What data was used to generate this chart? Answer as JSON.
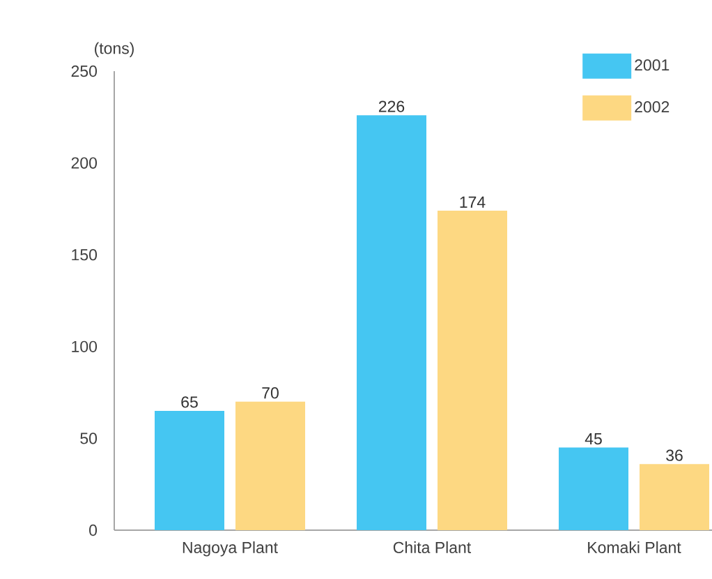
{
  "chart_data": {
    "type": "bar",
    "ylabel": "(tons)",
    "categories": [
      "Nagoya Plant",
      "Chita Plant",
      "Komaki Plant"
    ],
    "series": [
      {
        "name": "2001",
        "color": "#45c6f2",
        "values": [
          65,
          226,
          45
        ]
      },
      {
        "name": "2002",
        "color": "#fdd882",
        "values": [
          70,
          174,
          36
        ]
      }
    ],
    "ylim": [
      0,
      250
    ],
    "yticks": [
      0,
      50,
      100,
      150,
      200,
      250
    ],
    "data_labels": true,
    "legend": "top right",
    "grid": false
  }
}
